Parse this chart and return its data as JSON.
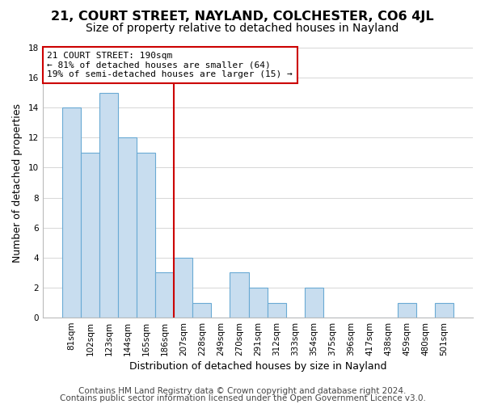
{
  "title": "21, COURT STREET, NAYLAND, COLCHESTER, CO6 4JL",
  "subtitle": "Size of property relative to detached houses in Nayland",
  "xlabel": "Distribution of detached houses by size in Nayland",
  "ylabel": "Number of detached properties",
  "footer_line1": "Contains HM Land Registry data © Crown copyright and database right 2024.",
  "footer_line2": "Contains public sector information licensed under the Open Government Licence v3.0.",
  "bar_labels": [
    "81sqm",
    "102sqm",
    "123sqm",
    "144sqm",
    "165sqm",
    "186sqm",
    "207sqm",
    "228sqm",
    "249sqm",
    "270sqm",
    "291sqm",
    "312sqm",
    "333sqm",
    "354sqm",
    "375sqm",
    "396sqm",
    "417sqm",
    "438sqm",
    "459sqm",
    "480sqm",
    "501sqm"
  ],
  "bar_values": [
    14,
    11,
    15,
    12,
    11,
    3,
    4,
    1,
    0,
    3,
    2,
    1,
    0,
    2,
    0,
    0,
    0,
    0,
    1,
    0,
    1
  ],
  "bar_color": "#c8ddef",
  "bar_edge_color": "#6aaad4",
  "highlight_bar_index": 5,
  "highlight_line_color": "#cc0000",
  "annotation_line1": "21 COURT STREET: 190sqm",
  "annotation_line2": "← 81% of detached houses are smaller (64)",
  "annotation_line3": "19% of semi-detached houses are larger (15) →",
  "annotation_box_edge_color": "#cc0000",
  "ylim": [
    0,
    18
  ],
  "yticks": [
    0,
    2,
    4,
    6,
    8,
    10,
    12,
    14,
    16,
    18
  ],
  "grid_color": "#d0d0d0",
  "background_color": "#ffffff",
  "title_fontsize": 11.5,
  "subtitle_fontsize": 10,
  "axis_label_fontsize": 9,
  "tick_fontsize": 7.5,
  "annotation_fontsize": 8,
  "footer_fontsize": 7.5
}
